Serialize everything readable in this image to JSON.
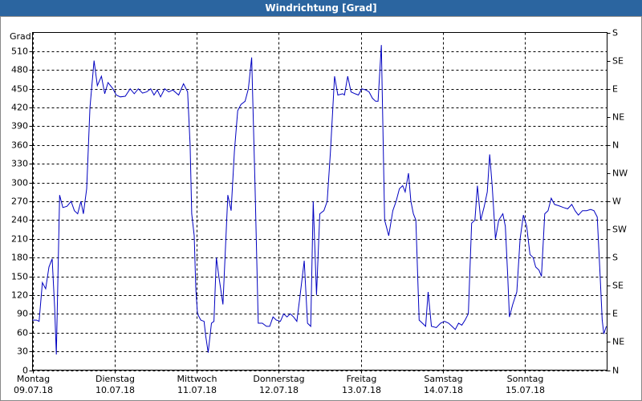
{
  "chart_data": {
    "type": "line",
    "title": "Windrichtung [Grad]",
    "y_label": "Grad",
    "color": "#0000c0",
    "xlim": [
      0,
      7
    ],
    "ylim": [
      0,
      540
    ],
    "y2lim": [
      0,
      540
    ],
    "grid": true,
    "xticks": [
      {
        "value": 0,
        "label": "Montag\n09.07.18"
      },
      {
        "value": 1,
        "label": "Dienstag\n10.07.18"
      },
      {
        "value": 2,
        "label": "Mittwoch\n11.07.18"
      },
      {
        "value": 3,
        "label": "Donnerstag\n12.07.18"
      },
      {
        "value": 4,
        "label": "Freitag\n13.07.18"
      },
      {
        "value": 5,
        "label": "Samstag\n14.07.18"
      },
      {
        "value": 6,
        "label": "Sonntag\n15.07.18"
      }
    ],
    "yticks": [
      0,
      30,
      60,
      90,
      120,
      150,
      180,
      210,
      240,
      270,
      300,
      330,
      360,
      390,
      420,
      450,
      480,
      510
    ],
    "y2ticks": [
      {
        "value": 0,
        "label": "N"
      },
      {
        "value": 45,
        "label": "NE"
      },
      {
        "value": 90,
        "label": "E"
      },
      {
        "value": 135,
        "label": "SE"
      },
      {
        "value": 180,
        "label": "S"
      },
      {
        "value": 225,
        "label": "SW"
      },
      {
        "value": 270,
        "label": "W"
      },
      {
        "value": 315,
        "label": "NW"
      },
      {
        "value": 360,
        "label": "N"
      },
      {
        "value": 405,
        "label": "NE"
      },
      {
        "value": 450,
        "label": "E"
      },
      {
        "value": 495,
        "label": "SE"
      },
      {
        "value": 540,
        "label": "S"
      }
    ],
    "x": [
      0,
      0.05,
      0.08,
      0.12,
      0.16,
      0.2,
      0.24,
      0.27,
      0.29,
      0.33,
      0.37,
      0.42,
      0.47,
      0.51,
      0.55,
      0.59,
      0.62,
      0.66,
      0.7,
      0.75,
      0.79,
      0.84,
      0.88,
      0.92,
      0.98,
      1.02,
      1.07,
      1.13,
      1.19,
      1.24,
      1.29,
      1.34,
      1.39,
      1.44,
      1.48,
      1.52,
      1.56,
      1.61,
      1.66,
      1.71,
      1.78,
      1.84,
      1.89,
      1.92,
      1.94,
      1.97,
      1.99,
      2.01,
      2.05,
      2.09,
      2.11,
      2.14,
      2.18,
      2.21,
      2.24,
      2.27,
      2.32,
      2.38,
      2.42,
      2.46,
      2.5,
      2.54,
      2.59,
      2.63,
      2.67,
      2.71,
      2.75,
      2.8,
      2.85,
      2.89,
      2.93,
      2.97,
      3.02,
      3.06,
      3.1,
      3.14,
      3.18,
      3.22,
      3.26,
      3.31,
      3.35,
      3.39,
      3.42,
      3.46,
      3.5,
      3.55,
      3.59,
      3.63,
      3.68,
      3.72,
      3.78,
      3.8,
      3.84,
      3.88,
      3.93,
      3.97,
      4.01,
      4.06,
      4.1,
      4.14,
      4.18,
      4.21,
      4.25,
      4.29,
      4.34,
      4.39,
      4.43,
      4.47,
      4.51,
      4.54,
      4.58,
      4.61,
      4.64,
      4.67,
      4.71,
      4.75,
      4.79,
      4.82,
      4.86,
      4.92,
      4.97,
      5.02,
      5.07,
      5.11,
      5.15,
      5.19,
      5.23,
      5.27,
      5.31,
      5.35,
      5.39,
      5.42,
      5.46,
      5.5,
      5.54,
      5.57,
      5.6,
      5.64,
      5.68,
      5.73,
      5.76,
      5.79,
      5.81,
      5.85,
      5.9,
      5.94,
      5.98,
      6.02,
      6.06,
      6.1,
      6.13,
      6.17,
      6.2,
      6.24,
      6.28,
      6.32,
      6.36,
      6.41,
      6.47,
      6.52,
      6.57,
      6.61,
      6.65,
      6.7,
      6.75,
      6.8,
      6.84,
      6.88,
      6.91,
      6.94,
      6.96,
      6.99
    ],
    "values": [
      80,
      80,
      78,
      140,
      130,
      165,
      178,
      100,
      25,
      280,
      260,
      262,
      270,
      255,
      250,
      270,
      250,
      290,
      420,
      495,
      455,
      470,
      442,
      460,
      450,
      440,
      437,
      438,
      450,
      442,
      450,
      443,
      445,
      450,
      440,
      448,
      437,
      450,
      445,
      448,
      440,
      458,
      445,
      360,
      250,
      215,
      130,
      90,
      80,
      78,
      55,
      28,
      75,
      78,
      180,
      150,
      105,
      280,
      255,
      350,
      415,
      425,
      430,
      450,
      500,
      300,
      75,
      75,
      70,
      70,
      85,
      80,
      78,
      90,
      85,
      90,
      85,
      78,
      120,
      175,
      75,
      70,
      270,
      120,
      250,
      255,
      270,
      350,
      470,
      440,
      442,
      440,
      470,
      445,
      442,
      440,
      450,
      448,
      445,
      435,
      430,
      430,
      520,
      240,
      215,
      255,
      270,
      290,
      295,
      285,
      315,
      270,
      250,
      240,
      80,
      75,
      70,
      125,
      70,
      68,
      75,
      78,
      75,
      70,
      65,
      75,
      72,
      80,
      90,
      235,
      240,
      295,
      240,
      260,
      285,
      345,
      295,
      210,
      240,
      250,
      230,
      150,
      85,
      105,
      125,
      210,
      248,
      230,
      185,
      180,
      165,
      160,
      150,
      250,
      255,
      275,
      265,
      263,
      260,
      258,
      265,
      255,
      248,
      255,
      255,
      257,
      255,
      245,
      165,
      80,
      58,
      70
    ]
  }
}
